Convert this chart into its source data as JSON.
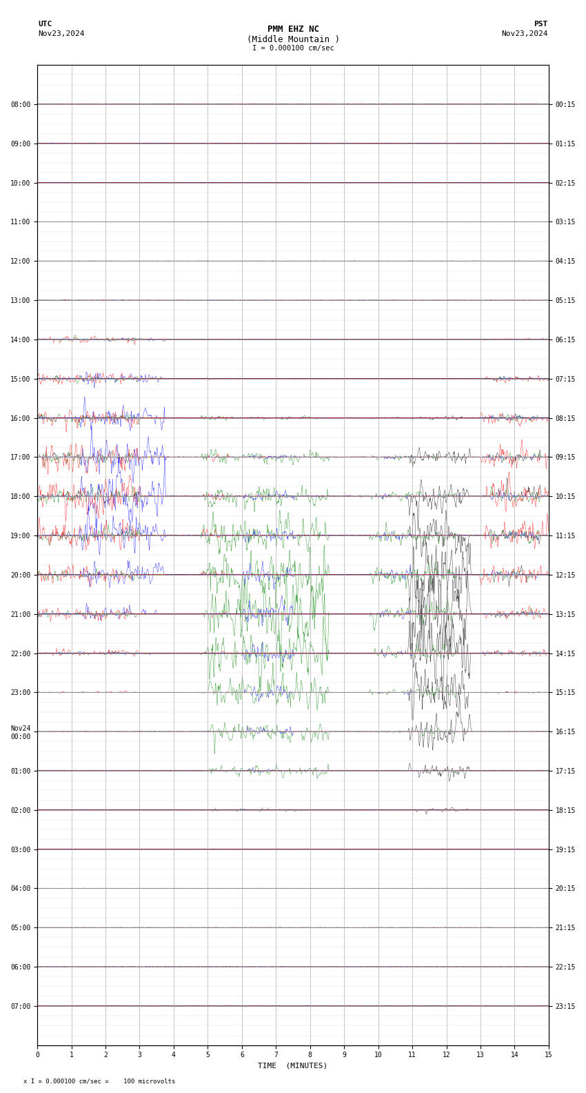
{
  "title_line1": "PMM EHZ NC",
  "title_line2": "(Middle Mountain )",
  "scale_label": "I = 0.000100 cm/sec",
  "bottom_label": "x I = 0.000100 cm/sec =    100 microvolts",
  "utc_label": "UTC",
  "utc_date": "Nov23,2024",
  "pst_label": "PST",
  "pst_date": "Nov23,2024",
  "xlabel": "TIME  (MINUTES)",
  "xmin": 0,
  "xmax": 15,
  "n_rows": 24,
  "left_ytick_labels": [
    "08:00",
    "09:00",
    "10:00",
    "11:00",
    "12:00",
    "13:00",
    "14:00",
    "15:00",
    "16:00",
    "17:00",
    "18:00",
    "19:00",
    "20:00",
    "21:00",
    "22:00",
    "23:00",
    "Nov24\n00:00",
    "01:00",
    "02:00",
    "03:00",
    "04:00",
    "05:00",
    "06:00",
    "07:00"
  ],
  "right_ytick_labels": [
    "00:15",
    "01:15",
    "02:15",
    "03:15",
    "04:15",
    "05:15",
    "06:15",
    "07:15",
    "08:15",
    "09:15",
    "10:15",
    "11:15",
    "12:15",
    "13:15",
    "14:15",
    "15:15",
    "16:15",
    "17:15",
    "18:15",
    "19:15",
    "20:15",
    "21:15",
    "22:15",
    "23:15"
  ],
  "bg_color": "white",
  "grid_color": "#999999",
  "minor_grid_color": "#cccccc",
  "title_fontsize": 9,
  "label_fontsize": 8,
  "tick_fontsize": 7
}
